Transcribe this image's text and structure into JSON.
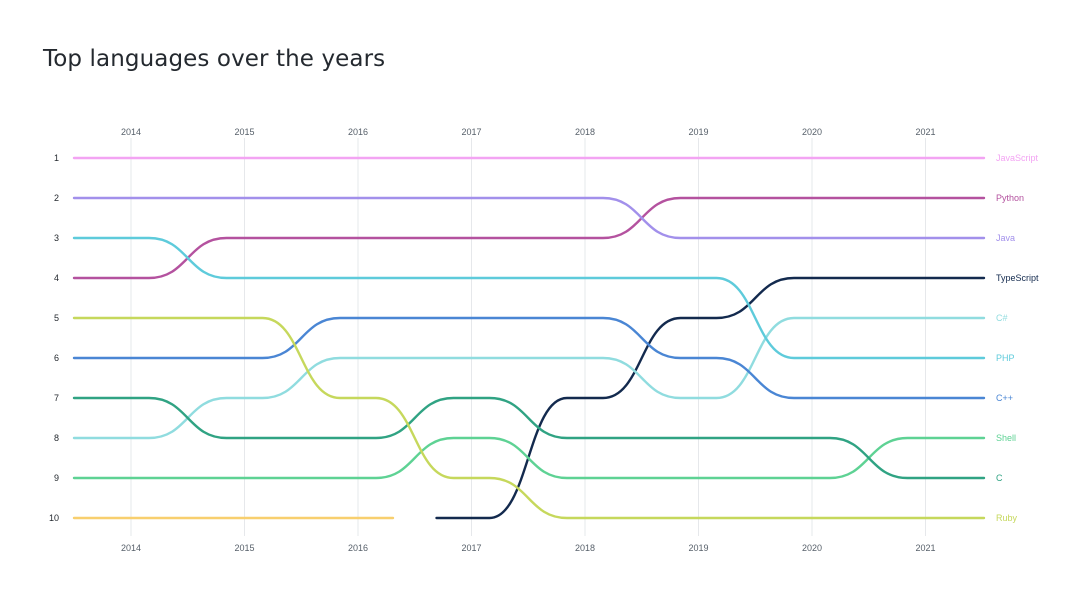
{
  "page": {
    "title": "Top languages over the years"
  },
  "chart_data": {
    "type": "line",
    "subtype": "bump",
    "title": "Top languages over the years",
    "x": [
      2014,
      2015,
      2016,
      2017,
      2018,
      2019,
      2020,
      2021
    ],
    "x_tick_labels": [
      "2014",
      "2015",
      "2016",
      "2017",
      "2018",
      "2019",
      "2020",
      "2021"
    ],
    "y_tick_labels": [
      "1",
      "2",
      "3",
      "4",
      "5",
      "6",
      "7",
      "8",
      "9",
      "10"
    ],
    "ylim": [
      1,
      10
    ],
    "y_inverted": true,
    "grid": "vertical",
    "legend": "labels at right end of each line",
    "series": [
      {
        "name": "JavaScript",
        "color": "#f3a4f3",
        "ranks": [
          1,
          1,
          1,
          1,
          1,
          1,
          1,
          1
        ]
      },
      {
        "name": "Python",
        "color": "#b4529f",
        "ranks": [
          4,
          3,
          3,
          3,
          3,
          2,
          2,
          2
        ]
      },
      {
        "name": "Java",
        "color": "#a290eb",
        "ranks": [
          2,
          2,
          2,
          2,
          2,
          3,
          3,
          3
        ]
      },
      {
        "name": "TypeScript",
        "color": "#132a4e",
        "ranks": [
          null,
          null,
          null,
          10,
          7,
          5,
          4,
          4
        ]
      },
      {
        "name": "C#",
        "color": "#90dcdf",
        "ranks": [
          8,
          7,
          6,
          6,
          6,
          7,
          5,
          5
        ]
      },
      {
        "name": "PHP",
        "color": "#5ecbdb",
        "ranks": [
          3,
          4,
          4,
          4,
          4,
          4,
          6,
          6
        ]
      },
      {
        "name": "C++",
        "color": "#4a86d4",
        "ranks": [
          6,
          6,
          5,
          5,
          5,
          6,
          7,
          7
        ]
      },
      {
        "name": "Shell",
        "color": "#5ed294",
        "ranks": [
          9,
          9,
          9,
          8,
          9,
          9,
          9,
          8
        ]
      },
      {
        "name": "C",
        "color": "#30a383",
        "ranks": [
          7,
          8,
          8,
          7,
          8,
          8,
          8,
          9
        ]
      },
      {
        "name": "Ruby",
        "color": "#c6d85c",
        "ranks": [
          5,
          5,
          7,
          9,
          10,
          10,
          10,
          10
        ]
      },
      {
        "name": "",
        "color": "#f8cf6e",
        "ranks": [
          10,
          10,
          10,
          null,
          null,
          null,
          null,
          null
        ]
      }
    ]
  }
}
